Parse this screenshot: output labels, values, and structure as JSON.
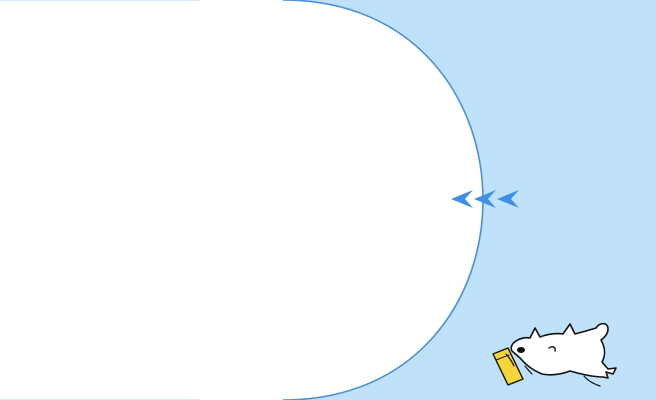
{
  "panel": {
    "state": "collapsed-edge",
    "colors": {
      "background": "#bfe2fa",
      "panel": "#ffffff",
      "outline": "#4a90d9",
      "accent": "#3f8fe6"
    }
  },
  "expand_control": {
    "icon": "triple-left-chevron-icon",
    "count": 3,
    "color": "#3f8fe6"
  },
  "mascot": {
    "icon": "reading-bear-icon",
    "book_color": "#f6d63a"
  }
}
